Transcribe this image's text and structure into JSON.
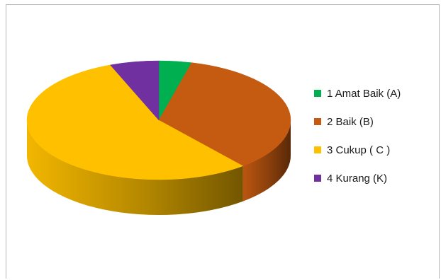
{
  "chart_data": {
    "type": "pie",
    "style": "3d",
    "title": "",
    "legend_position": "right",
    "categories": [
      "1 Amat Baik (A)",
      "2 Baik (B)",
      "3 Cukup ( C )",
      "4 Kurang (K)"
    ],
    "values": [
      4,
      35,
      55,
      6
    ],
    "colors": [
      "#00b050",
      "#c55a11",
      "#ffc000",
      "#7030a0"
    ]
  }
}
